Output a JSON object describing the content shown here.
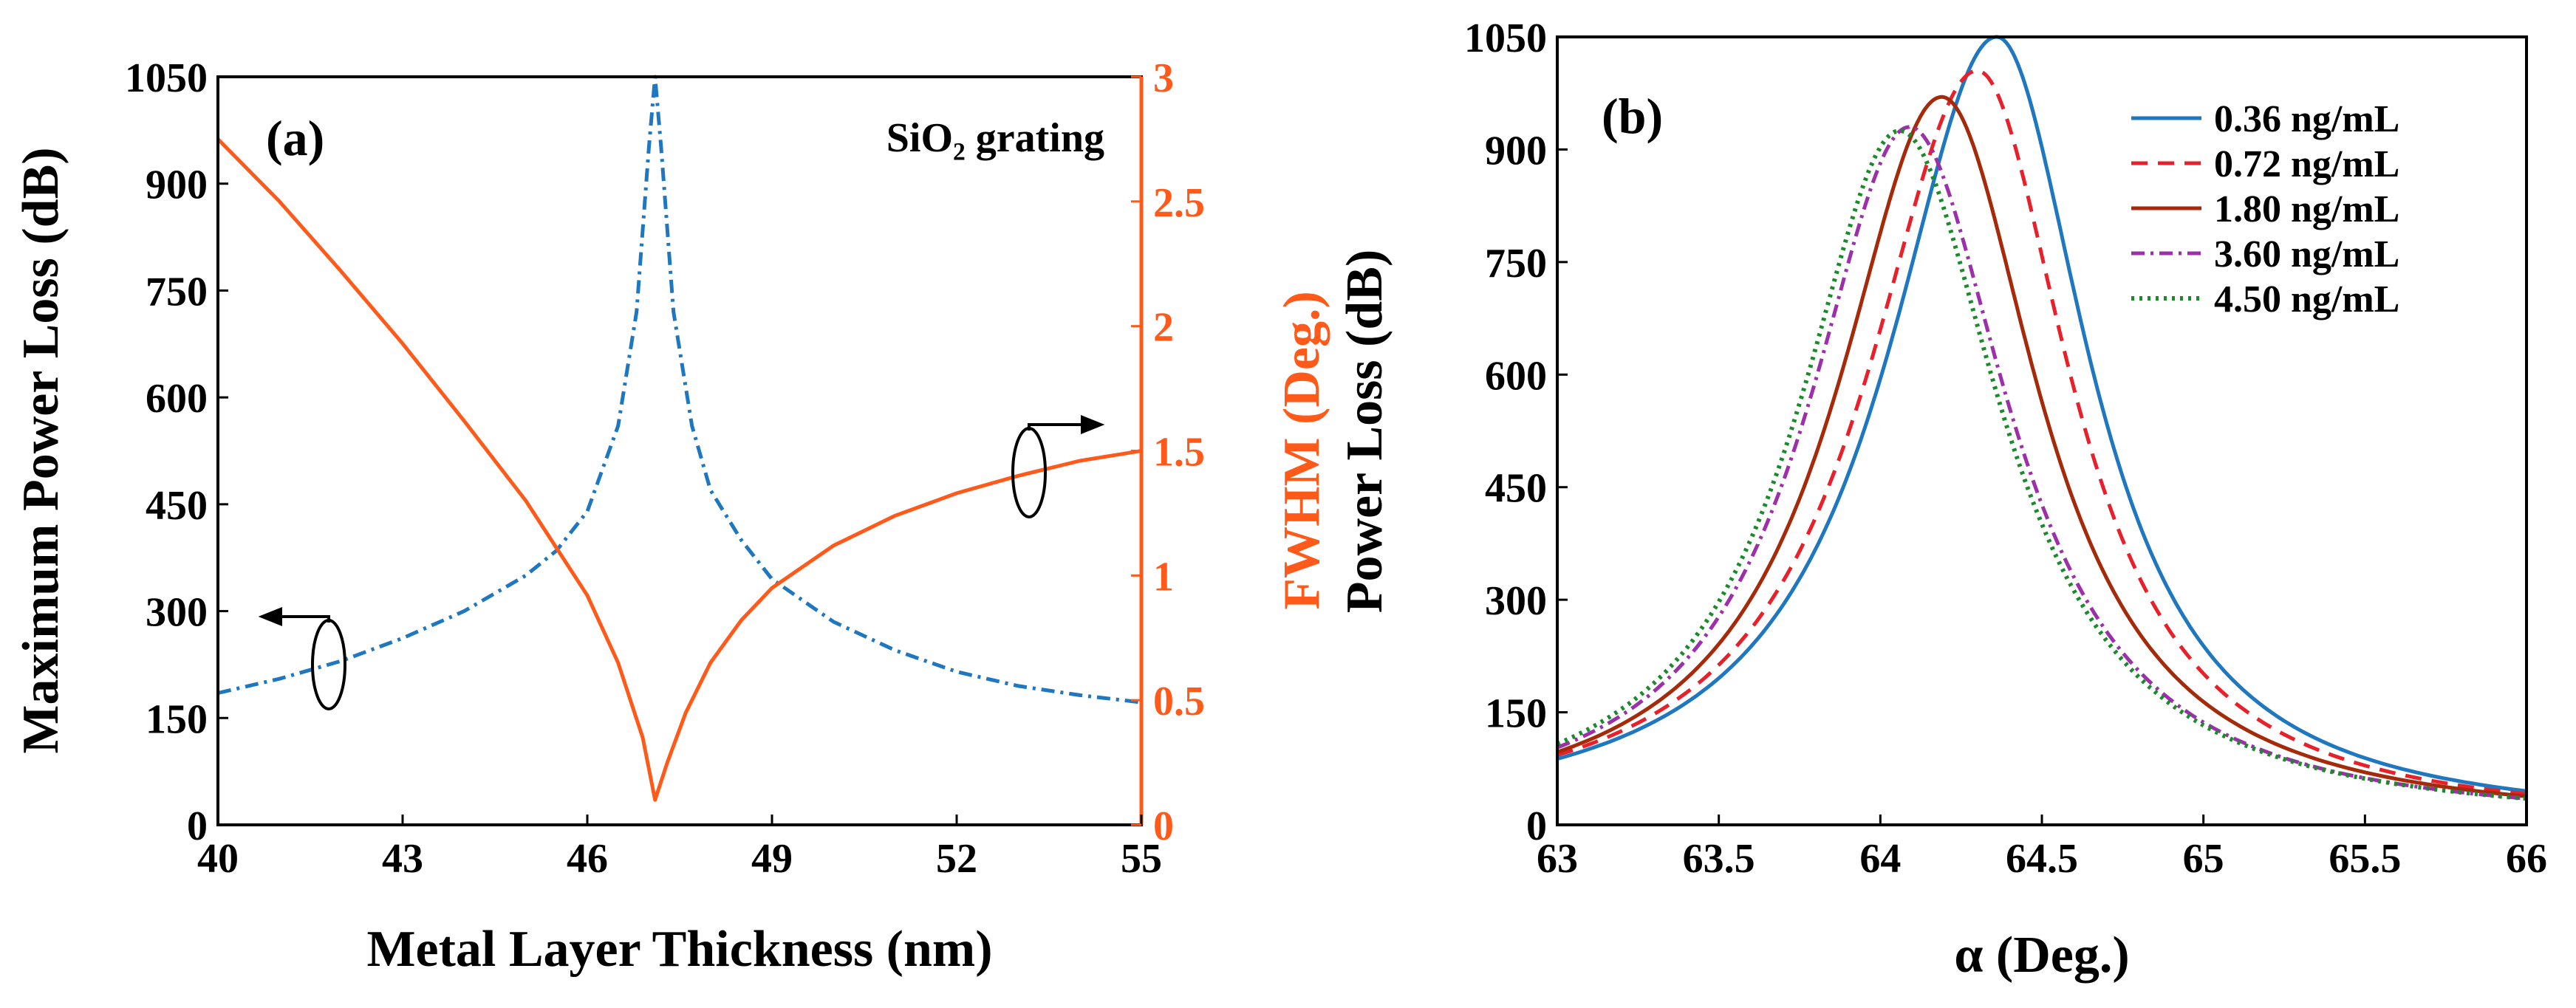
{
  "chart_data": [
    {
      "type": "line",
      "panel_label": "(a)",
      "annotation": "SiO₂ grating",
      "xlabel": "Metal Layer Thickness (nm)",
      "ylabel": "Maximum Power Loss (dB)",
      "y2label": "FWHM (Deg.)",
      "xlim": [
        40,
        55
      ],
      "ylim": [
        0,
        1050
      ],
      "y2lim": [
        0,
        3
      ],
      "xticks": [
        40,
        43,
        46,
        49,
        52,
        55
      ],
      "xtick_labels": [
        "40",
        "43",
        "46",
        "49",
        "52",
        "55"
      ],
      "yticks": [
        0,
        150,
        300,
        450,
        600,
        750,
        900,
        1050
      ],
      "ytick_labels": [
        "0",
        "150",
        "300",
        "450",
        "600",
        "750",
        "900",
        "1050"
      ],
      "y2ticks": [
        0,
        0.5,
        1,
        1.5,
        2,
        2.5,
        3
      ],
      "y2tick_labels": [
        "0",
        "0.5",
        "1",
        "1.5",
        "2",
        "2.5",
        "3"
      ],
      "colors": {
        "loss": "#1f77c0",
        "fwhm": "#ff5a1a",
        "axis_right": "#ff5a1a"
      },
      "series": [
        {
          "name": "Maximum Power Loss",
          "axis": "left",
          "style": "dashdot",
          "x": [
            40,
            41,
            42,
            43,
            44,
            45,
            45.5,
            46,
            46.5,
            46.8,
            47,
            47.1,
            47.2,
            47.4,
            47.7,
            48,
            48.5,
            49,
            50,
            51,
            52,
            53,
            54,
            55
          ],
          "y": [
            185,
            205,
            230,
            262,
            300,
            350,
            385,
            440,
            560,
            720,
            950,
            1050,
            950,
            720,
            560,
            470,
            400,
            345,
            285,
            245,
            215,
            195,
            182,
            172
          ]
        },
        {
          "name": "FWHM",
          "axis": "right",
          "style": "solid",
          "x": [
            40,
            41,
            42,
            43,
            44,
            45,
            46,
            46.5,
            46.9,
            47.1,
            47.3,
            47.6,
            48,
            48.5,
            49,
            50,
            51,
            52,
            53,
            54,
            55
          ],
          "y": [
            2.75,
            2.5,
            2.22,
            1.93,
            1.62,
            1.3,
            0.92,
            0.65,
            0.35,
            0.1,
            0.25,
            0.45,
            0.65,
            0.82,
            0.95,
            1.12,
            1.24,
            1.33,
            1.4,
            1.46,
            1.5
          ]
        }
      ]
    },
    {
      "type": "line",
      "panel_label": "(b)",
      "xlabel": "α (Deg.)",
      "ylabel": "Power Loss (dB)",
      "xlim": [
        63,
        66
      ],
      "ylim": [
        0,
        1050
      ],
      "xticks": [
        63,
        63.5,
        64,
        64.5,
        65,
        65.5,
        66
      ],
      "xtick_labels": [
        "63",
        "63.5",
        "64",
        "64.5",
        "65",
        "65.5",
        "66"
      ],
      "yticks": [
        0,
        150,
        300,
        450,
        600,
        750,
        900,
        1050
      ],
      "ytick_labels": [
        "0",
        "150",
        "300",
        "450",
        "600",
        "750",
        "900",
        "1050"
      ],
      "legend_position": "top-right",
      "series": [
        {
          "name": "0.36 ng/mL",
          "color": "#1f77c0",
          "style": "solid",
          "peak_x": 64.36,
          "peak_y": 1050,
          "edge_left_y": 88,
          "edge_right_y": 45
        },
        {
          "name": "0.72 ng/mL",
          "color": "#e8202a",
          "style": "dashed",
          "peak_x": 64.3,
          "peak_y": 1005,
          "edge_left_y": 93,
          "edge_right_y": 41
        },
        {
          "name": "1.80 ng/mL",
          "color": "#a52a0a",
          "style": "solid",
          "peak_x": 64.19,
          "peak_y": 970,
          "edge_left_y": 97,
          "edge_right_y": 38
        },
        {
          "name": "3.60 ng/mL",
          "color": "#9b30a8",
          "style": "dashdot",
          "peak_x": 64.09,
          "peak_y": 930,
          "edge_left_y": 103,
          "edge_right_y": 35
        },
        {
          "name": "4.50 ng/mL",
          "color": "#1a8a2a",
          "style": "dotted",
          "peak_x": 64.06,
          "peak_y": 925,
          "edge_left_y": 108,
          "edge_right_y": 35
        }
      ]
    }
  ]
}
